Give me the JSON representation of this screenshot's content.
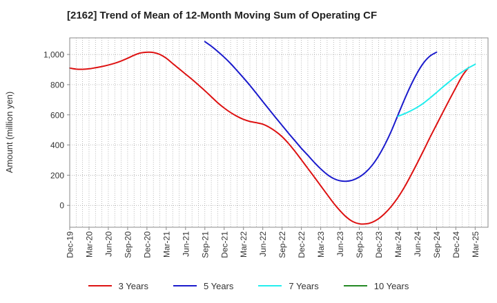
{
  "chart_data": {
    "type": "line",
    "title": "[2162]  Trend of Mean of 12-Month Moving Sum of Operating CF",
    "xlabel": "",
    "ylabel": "Amount (million yen)",
    "ylim": [
      -145,
      1110
    ],
    "yticks": [
      0,
      200,
      400,
      600,
      800,
      1000
    ],
    "ytick_labels": [
      "0",
      "200",
      "400",
      "600",
      "800",
      "1,000"
    ],
    "x_tick_labels": [
      "Dec-19",
      "Mar-20",
      "Jun-20",
      "Sep-20",
      "Dec-20",
      "Mar-21",
      "Jun-21",
      "Sep-21",
      "Dec-21",
      "Mar-22",
      "Jun-22",
      "Sep-22",
      "Dec-22",
      "Mar-23",
      "Jun-23",
      "Sep-23",
      "Dec-23",
      "Mar-24",
      "Jun-24",
      "Sep-24",
      "Dec-24",
      "Mar-25"
    ],
    "x_month_count": 65,
    "grid": true,
    "legend_position": "bottom",
    "series": [
      {
        "name": "3 Years",
        "color": "#dd1111",
        "points": [
          [
            0,
            910
          ],
          [
            1,
            903
          ],
          [
            2,
            902
          ],
          [
            3,
            905
          ],
          [
            4,
            912
          ],
          [
            5,
            920
          ],
          [
            6,
            930
          ],
          [
            7,
            942
          ],
          [
            8,
            957
          ],
          [
            9,
            975
          ],
          [
            10,
            995
          ],
          [
            11,
            1010
          ],
          [
            12,
            1015
          ],
          [
            13,
            1013
          ],
          [
            14,
            1000
          ],
          [
            15,
            975
          ],
          [
            16,
            940
          ],
          [
            17,
            905
          ],
          [
            18,
            870
          ],
          [
            19,
            835
          ],
          [
            20,
            798
          ],
          [
            21,
            760
          ],
          [
            22,
            720
          ],
          [
            23,
            680
          ],
          [
            24,
            645
          ],
          [
            25,
            615
          ],
          [
            26,
            590
          ],
          [
            27,
            570
          ],
          [
            28,
            556
          ],
          [
            29,
            548
          ],
          [
            30,
            538
          ],
          [
            31,
            518
          ],
          [
            32,
            490
          ],
          [
            33,
            455
          ],
          [
            34,
            410
          ],
          [
            35,
            358
          ],
          [
            36,
            302
          ],
          [
            37,
            245
          ],
          [
            38,
            188
          ],
          [
            39,
            130
          ],
          [
            40,
            72
          ],
          [
            41,
            15
          ],
          [
            42,
            -35
          ],
          [
            43,
            -78
          ],
          [
            44,
            -108
          ],
          [
            45,
            -122
          ],
          [
            46,
            -123
          ],
          [
            47,
            -112
          ],
          [
            48,
            -88
          ],
          [
            49,
            -52
          ],
          [
            50,
            -5
          ],
          [
            51,
            52
          ],
          [
            52,
            120
          ],
          [
            53,
            198
          ],
          [
            54,
            280
          ],
          [
            55,
            365
          ],
          [
            56,
            452
          ],
          [
            57,
            535
          ],
          [
            58,
            618
          ],
          [
            59,
            700
          ],
          [
            60,
            780
          ],
          [
            61,
            858
          ],
          [
            62,
            915
          ]
        ]
      },
      {
        "name": "5 Years",
        "color": "#1a1acc",
        "points": [
          [
            21,
            1085
          ],
          [
            22,
            1055
          ],
          [
            23,
            1020
          ],
          [
            24,
            982
          ],
          [
            25,
            940
          ],
          [
            26,
            893
          ],
          [
            27,
            845
          ],
          [
            28,
            795
          ],
          [
            29,
            742
          ],
          [
            30,
            688
          ],
          [
            31,
            635
          ],
          [
            32,
            582
          ],
          [
            33,
            530
          ],
          [
            34,
            478
          ],
          [
            35,
            428
          ],
          [
            36,
            378
          ],
          [
            37,
            332
          ],
          [
            38,
            285
          ],
          [
            39,
            242
          ],
          [
            40,
            205
          ],
          [
            41,
            178
          ],
          [
            42,
            163
          ],
          [
            43,
            160
          ],
          [
            44,
            168
          ],
          [
            45,
            188
          ],
          [
            46,
            220
          ],
          [
            47,
            266
          ],
          [
            48,
            328
          ],
          [
            49,
            405
          ],
          [
            50,
            495
          ],
          [
            51,
            598
          ],
          [
            52,
            700
          ],
          [
            53,
            795
          ],
          [
            54,
            878
          ],
          [
            55,
            945
          ],
          [
            56,
            990
          ],
          [
            57,
            1015
          ]
        ]
      },
      {
        "name": "7 Years",
        "color": "#22eeee",
        "points": [
          [
            51,
            590
          ],
          [
            52,
            607
          ],
          [
            53,
            627
          ],
          [
            54,
            650
          ],
          [
            55,
            678
          ],
          [
            56,
            712
          ],
          [
            57,
            748
          ],
          [
            58,
            785
          ],
          [
            59,
            820
          ],
          [
            60,
            855
          ],
          [
            61,
            885
          ],
          [
            62,
            912
          ],
          [
            63,
            935
          ]
        ]
      },
      {
        "name": "10 Years",
        "color": "#228822",
        "points": []
      }
    ]
  }
}
